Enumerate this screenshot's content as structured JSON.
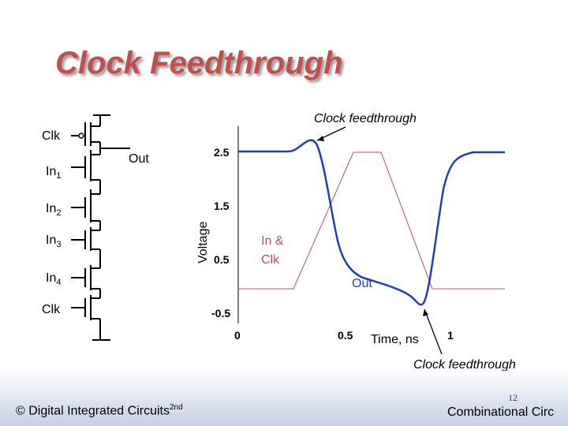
{
  "slide": {
    "title": "Clock Feedthrough",
    "page_number": "12",
    "footer_left": "© Digital Integrated Circuits",
    "footer_left_sup": "2nd",
    "footer_right": "Combinational Circ"
  },
  "circuit": {
    "inputs": [
      {
        "name": "Clk",
        "sub": ""
      },
      {
        "name": "In",
        "sub": "1"
      },
      {
        "name": "In",
        "sub": "2"
      },
      {
        "name": "In",
        "sub": "3"
      },
      {
        "name": "In",
        "sub": "4"
      },
      {
        "name": "Clk",
        "sub": ""
      }
    ],
    "output_label": "Out"
  },
  "plot": {
    "ylabel": "Voltage",
    "xlabel": "Time, ns",
    "y_ticks": [
      "2.5",
      "1.5",
      "0.5",
      "-0.5"
    ],
    "x_ticks": [
      "0",
      "0.5",
      "1"
    ],
    "annotation_top": "Clock feedthrough",
    "annotation_bottom": "Clock feedthrough",
    "in_clk_label_1": "In &",
    "in_clk_label_2": "Clk",
    "out_label": "Out",
    "colors": {
      "out_trace": "#1f3fbf",
      "input_trace": "#c0504d"
    }
  }
}
